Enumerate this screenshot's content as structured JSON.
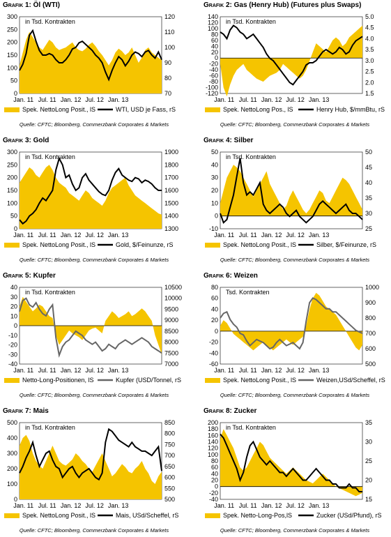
{
  "colors": {
    "area": "#f5c400",
    "line_black": "#000000",
    "line_gray": "#666666"
  },
  "x_ticks": [
    "Jan. 11",
    "Jul. 11",
    "Jan. 12",
    "Jul. 12",
    "Jan. 13"
  ],
  "source": "Quelle: CFTC; Bloomberg, Commerzbank Corporates & Markets",
  "chart_data": [
    {
      "id": "oil",
      "type": "area+line",
      "grafik": "Grafik 1",
      "title": "Öl (WTI)",
      "unit_label": "in Tsd. Kontrakten",
      "left_axis": {
        "ticks": [
          "0",
          "50",
          "100",
          "150",
          "200",
          "250",
          "300"
        ],
        "range": [
          0,
          300
        ]
      },
      "right_axis": {
        "ticks": [
          "70",
          "80",
          "90",
          "100",
          "110",
          "120"
        ],
        "range": [
          70,
          120
        ]
      },
      "legend": [
        "Spek. NettoLong Posit., lS",
        "WTI, USD je Fass, rS"
      ],
      "line_color": "black",
      "area": [
        110,
        160,
        210,
        240,
        220,
        200,
        180,
        170,
        190,
        210,
        200,
        180,
        170,
        175,
        180,
        190,
        200,
        180,
        170,
        165,
        175,
        190,
        200,
        185,
        165,
        150,
        130,
        110,
        130,
        160,
        175,
        165,
        150,
        160,
        180,
        150,
        120,
        140,
        170,
        180,
        160,
        150,
        140,
        130
      ],
      "line": [
        85,
        89,
        96,
        108,
        111,
        104,
        98,
        95,
        95,
        96,
        95,
        92,
        90,
        90,
        92,
        95,
        99,
        100,
        103,
        104,
        102,
        100,
        98,
        95,
        93,
        90,
        84,
        79,
        85,
        90,
        94,
        92,
        88,
        91,
        95,
        97,
        96,
        94,
        97,
        98,
        95,
        93,
        97,
        92
      ]
    },
    {
      "id": "gas",
      "type": "area+line",
      "grafik": "Grafik 2",
      "title": "Gas (Henry Hub) (Futures plus Swaps)",
      "unit_label": "in Tsd. Kontrakten",
      "left_axis": {
        "ticks": [
          "-120",
          "-100",
          "-80",
          "-60",
          "-40",
          "-20",
          "0",
          "20",
          "40",
          "60",
          "80",
          "100",
          "120",
          "140"
        ],
        "range": [
          -120,
          140
        ]
      },
      "right_axis": {
        "ticks": [
          "1.5",
          "2.0",
          "2.5",
          "3.0",
          "3.5",
          "4.0",
          "4.5",
          "5.0"
        ],
        "range": [
          1.5,
          5.0
        ]
      },
      "legend": [
        "Spek. NettoLong Pos., lS",
        "Henry Hub, $/mmBtu, rS"
      ],
      "line_color": "black",
      "area": [
        -20,
        -100,
        -130,
        -90,
        -60,
        -40,
        -30,
        -20,
        -40,
        -50,
        -60,
        -70,
        -75,
        -80,
        -70,
        -60,
        -55,
        -50,
        -40,
        -20,
        -30,
        -40,
        -50,
        -60,
        -70,
        -60,
        -40,
        -10,
        20,
        50,
        40,
        30,
        20,
        40,
        60,
        70,
        60,
        40,
        50,
        70,
        80,
        90,
        100,
        110
      ],
      "line": [
        4.3,
        4.2,
        4.0,
        4.4,
        4.6,
        4.5,
        4.3,
        4.2,
        4.0,
        4.1,
        4.2,
        4.0,
        3.8,
        3.6,
        3.3,
        3.1,
        3.0,
        2.8,
        2.6,
        2.4,
        2.2,
        2.0,
        1.9,
        2.1,
        2.3,
        2.5,
        2.8,
        2.9,
        2.9,
        3.0,
        3.2,
        3.4,
        3.5,
        3.4,
        3.3,
        3.4,
        3.6,
        3.5,
        3.3,
        3.4,
        3.7,
        3.9,
        4.0,
        4.1
      ]
    },
    {
      "id": "gold",
      "type": "area+line",
      "grafik": "Grafik 3",
      "title": "Gold",
      "unit_label": "in Tsd. Kontrakten",
      "left_axis": {
        "ticks": [
          "0",
          "50",
          "100",
          "150",
          "200",
          "250",
          "300"
        ],
        "range": [
          0,
          300
        ]
      },
      "right_axis": {
        "ticks": [
          "1300",
          "1400",
          "1500",
          "1600",
          "1700",
          "1800",
          "1900"
        ],
        "range": [
          1300,
          1900
        ]
      },
      "legend": [
        "Spek. NettoLong Posit., lS",
        "Gold, $/Feinunze, rS"
      ],
      "line_color": "black",
      "area": [
        180,
        200,
        220,
        240,
        230,
        210,
        200,
        220,
        240,
        250,
        230,
        200,
        180,
        170,
        160,
        140,
        130,
        120,
        110,
        130,
        150,
        140,
        120,
        110,
        100,
        90,
        110,
        140,
        160,
        170,
        180,
        190,
        200,
        170,
        150,
        130,
        120,
        110,
        100,
        90,
        80,
        70,
        60,
        55
      ],
      "line": [
        1370,
        1340,
        1360,
        1400,
        1420,
        1450,
        1500,
        1540,
        1520,
        1560,
        1600,
        1760,
        1850,
        1800,
        1700,
        1720,
        1650,
        1600,
        1620,
        1700,
        1730,
        1680,
        1650,
        1620,
        1590,
        1570,
        1560,
        1600,
        1680,
        1740,
        1770,
        1720,
        1700,
        1680,
        1670,
        1700,
        1690,
        1660,
        1680,
        1670,
        1650,
        1620,
        1600,
        1600
      ]
    },
    {
      "id": "silver",
      "type": "area+line",
      "grafik": "Grafik 4",
      "title": "Silber",
      "unit_label": "in Tsd. Kontrakten",
      "left_axis": {
        "ticks": [
          "-10",
          "0",
          "10",
          "20",
          "30",
          "40",
          "50"
        ],
        "range": [
          -10,
          50
        ]
      },
      "right_axis": {
        "ticks": [
          "25",
          "30",
          "35",
          "40",
          "45",
          "50"
        ],
        "range": [
          25,
          50
        ]
      },
      "legend": [
        "Spek. NettoLong Posit., lS",
        "Silber, $/Feinunze, rS"
      ],
      "line_color": "black",
      "area": [
        10,
        20,
        30,
        35,
        40,
        38,
        35,
        30,
        25,
        20,
        15,
        20,
        25,
        30,
        35,
        25,
        20,
        15,
        10,
        5,
        8,
        15,
        20,
        15,
        10,
        5,
        2,
        5,
        10,
        15,
        20,
        18,
        12,
        10,
        15,
        20,
        25,
        30,
        28,
        25,
        20,
        15,
        10,
        5
      ],
      "line": [
        30,
        27,
        28,
        32,
        36,
        42,
        48,
        40,
        36,
        37,
        36,
        38,
        40,
        33,
        31,
        30,
        31,
        32,
        33,
        32,
        30,
        29,
        30,
        31,
        29,
        28,
        27,
        28,
        29,
        31,
        33,
        34,
        33,
        32,
        31,
        30,
        31,
        32,
        33,
        31,
        30,
        30,
        29,
        28
      ]
    },
    {
      "id": "copper",
      "type": "area+line",
      "grafik": "Grafik 5",
      "title": "Kupfer",
      "unit_label": "in Tsd. Kontrakten",
      "left_axis": {
        "ticks": [
          "-40",
          "-30",
          "-20",
          "-10",
          "0",
          "10",
          "20",
          "30",
          "40"
        ],
        "range": [
          -40,
          40
        ]
      },
      "right_axis": {
        "ticks": [
          "7000",
          "7500",
          "8000",
          "8500",
          "9000",
          "9500",
          "10000",
          "10500"
        ],
        "range": [
          7000,
          10500
        ]
      },
      "legend": [
        "Netto-Long-Positionen, lS",
        "Kupfer (USD/Tonnel, rS"
      ],
      "line_color": "gray",
      "area": [
        20,
        30,
        25,
        20,
        15,
        18,
        22,
        20,
        15,
        10,
        8,
        -10,
        -20,
        -15,
        -10,
        -5,
        -8,
        -10,
        -12,
        -15,
        -10,
        -5,
        -3,
        -2,
        -5,
        -8,
        5,
        10,
        15,
        12,
        8,
        10,
        12,
        15,
        10,
        12,
        15,
        18,
        15,
        10,
        5,
        -10,
        -20,
        -30
      ],
      "line": [
        9400,
        9900,
        10000,
        9700,
        9600,
        9800,
        9500,
        9300,
        9200,
        9500,
        9700,
        8200,
        7400,
        7800,
        8000,
        8100,
        8300,
        8500,
        8400,
        8300,
        8100,
        8000,
        7900,
        8000,
        7800,
        7600,
        7700,
        7900,
        7800,
        7700,
        7900,
        8000,
        8100,
        8000,
        7900,
        8000,
        8100,
        8200,
        8100,
        8000,
        7800,
        7700,
        7600,
        7500
      ]
    },
    {
      "id": "wheat",
      "type": "area+line",
      "grafik": "Grafik 6",
      "title": "Weizen",
      "unit_label": "Tsd. Kontrakten",
      "left_axis": {
        "ticks": [
          "-60",
          "-40",
          "-20",
          "0",
          "20",
          "40",
          "60",
          "80"
        ],
        "range": [
          -60,
          80
        ]
      },
      "right_axis": {
        "ticks": [
          "500",
          "600",
          "700",
          "800",
          "900",
          "1000"
        ],
        "range": [
          500,
          1000
        ]
      },
      "legend": [
        "Spek. NettoLong Posit., lS",
        "Weizen,USd/Scheffel, rS"
      ],
      "line_color": "gray",
      "area": [
        10,
        20,
        15,
        5,
        -5,
        -10,
        -15,
        -20,
        -25,
        -30,
        -35,
        -30,
        -25,
        -20,
        -25,
        -30,
        -35,
        -30,
        -25,
        -20,
        -15,
        -20,
        -25,
        -20,
        -15,
        -10,
        10,
        40,
        60,
        70,
        65,
        55,
        45,
        40,
        35,
        30,
        20,
        10,
        0,
        -10,
        -20,
        -30,
        -35,
        -25
      ],
      "line": [
        800,
        830,
        840,
        790,
        760,
        740,
        700,
        690,
        650,
        620,
        640,
        660,
        650,
        640,
        620,
        600,
        610,
        640,
        660,
        640,
        620,
        630,
        640,
        620,
        600,
        640,
        780,
        900,
        930,
        920,
        900,
        880,
        860,
        860,
        840,
        840,
        820,
        800,
        780,
        760,
        740,
        720,
        710,
        700
      ]
    },
    {
      "id": "corn",
      "type": "area+line",
      "grafik": "Grafik 7",
      "title": "Mais",
      "unit_label": "in Tsd. Kontrakten",
      "left_axis": {
        "ticks": [
          "0",
          "100",
          "200",
          "300",
          "400",
          "500"
        ],
        "range": [
          0,
          500
        ]
      },
      "right_axis": {
        "ticks": [
          "500",
          "550",
          "600",
          "650",
          "700",
          "750",
          "800",
          "850"
        ],
        "range": [
          500,
          850
        ]
      },
      "legend": [
        "Spek. NettoLong Posit., lS",
        "Mais, USd/Scheffel, rS"
      ],
      "line_color": "black",
      "area": [
        350,
        400,
        420,
        380,
        300,
        250,
        220,
        200,
        250,
        300,
        350,
        300,
        250,
        230,
        220,
        240,
        260,
        300,
        280,
        250,
        230,
        200,
        180,
        220,
        260,
        300,
        250,
        200,
        150,
        170,
        200,
        230,
        210,
        180,
        170,
        200,
        220,
        250,
        200,
        170,
        120,
        100,
        150,
        180
      ],
      "line": [
        620,
        650,
        690,
        720,
        760,
        700,
        650,
        680,
        710,
        720,
        680,
        650,
        640,
        600,
        620,
        640,
        650,
        620,
        600,
        620,
        630,
        640,
        620,
        600,
        590,
        620,
        760,
        820,
        810,
        790,
        770,
        760,
        750,
        740,
        760,
        740,
        730,
        720,
        720,
        710,
        700,
        720,
        740,
        630
      ]
    },
    {
      "id": "sugar",
      "type": "area+line",
      "grafik": "Grafik 8",
      "title": "Zucker",
      "unit_label": "in Tsd. Kontrakten",
      "left_axis": {
        "ticks": [
          "-40",
          "-20",
          "0",
          "20",
          "40",
          "60",
          "80",
          "100",
          "120",
          "140",
          "160",
          "180",
          "200"
        ],
        "range": [
          -40,
          200
        ]
      },
      "right_axis": {
        "ticks": [
          "15",
          "20",
          "25",
          "30",
          "35"
        ],
        "range": [
          15,
          35
        ]
      },
      "legend": [
        "Spek. Netto-Long-Pos,lS",
        "Zucker (USd/Pfund), rS"
      ],
      "line_color": "black",
      "area": [
        150,
        180,
        160,
        140,
        120,
        90,
        60,
        50,
        60,
        80,
        100,
        120,
        140,
        130,
        110,
        90,
        80,
        70,
        60,
        50,
        40,
        50,
        60,
        50,
        40,
        30,
        20,
        15,
        10,
        20,
        30,
        40,
        30,
        20,
        10,
        0,
        -5,
        -10,
        -15,
        -20,
        -25,
        -30,
        -25,
        -20
      ],
      "line": [
        32,
        31,
        29,
        27,
        25,
        23,
        20,
        22,
        26,
        29,
        30,
        28,
        26,
        25,
        24,
        25,
        24,
        23,
        22,
        22,
        21,
        22,
        23,
        22,
        21,
        20,
        20,
        21,
        22,
        23,
        22,
        21,
        20,
        20,
        19,
        19,
        18,
        18,
        18,
        19,
        18,
        18,
        17,
        17
      ]
    }
  ]
}
